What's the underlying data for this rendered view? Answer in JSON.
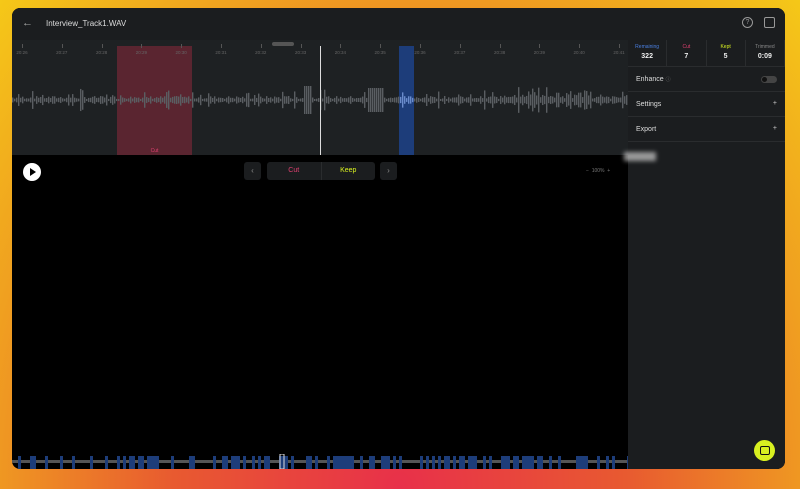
{
  "header": {
    "title": "Interview_Track1.WAV",
    "back_icon": "arrow-left-icon",
    "help_icon": "question-circle-icon",
    "panel_icon": "sidebar-toggle-icon"
  },
  "timeline": {
    "ticks": [
      "20:26",
      "20:27",
      "20:28",
      "20:29",
      "20:30",
      "20:31",
      "20:32",
      "20:33",
      "20:34",
      "20:35",
      "20:36",
      "20:37",
      "20:38",
      "20:39",
      "20:40",
      "20:41"
    ],
    "cut_label": "Cut"
  },
  "stats": [
    {
      "label": "Remaining",
      "value": "322",
      "color": "#4a7fe0"
    },
    {
      "label": "Cut",
      "value": "7",
      "color": "#e04070"
    },
    {
      "label": "Kept",
      "value": "5",
      "color": "#d8f020"
    },
    {
      "label": "Trimmed",
      "value": "0:09",
      "color": "#888888"
    }
  ],
  "panel": {
    "enhance": "Enhance",
    "enhance_on": false,
    "settings": "Settings",
    "export": "Export"
  },
  "controls": {
    "cut": "Cut",
    "keep": "Keep",
    "prev": "‹",
    "next": "›",
    "zoom": "100%",
    "zoom_out": "−",
    "zoom_in": "+"
  },
  "colors": {
    "cut": "#e04070",
    "keep": "#d8f020",
    "kept_region": "#1d3d7a"
  }
}
